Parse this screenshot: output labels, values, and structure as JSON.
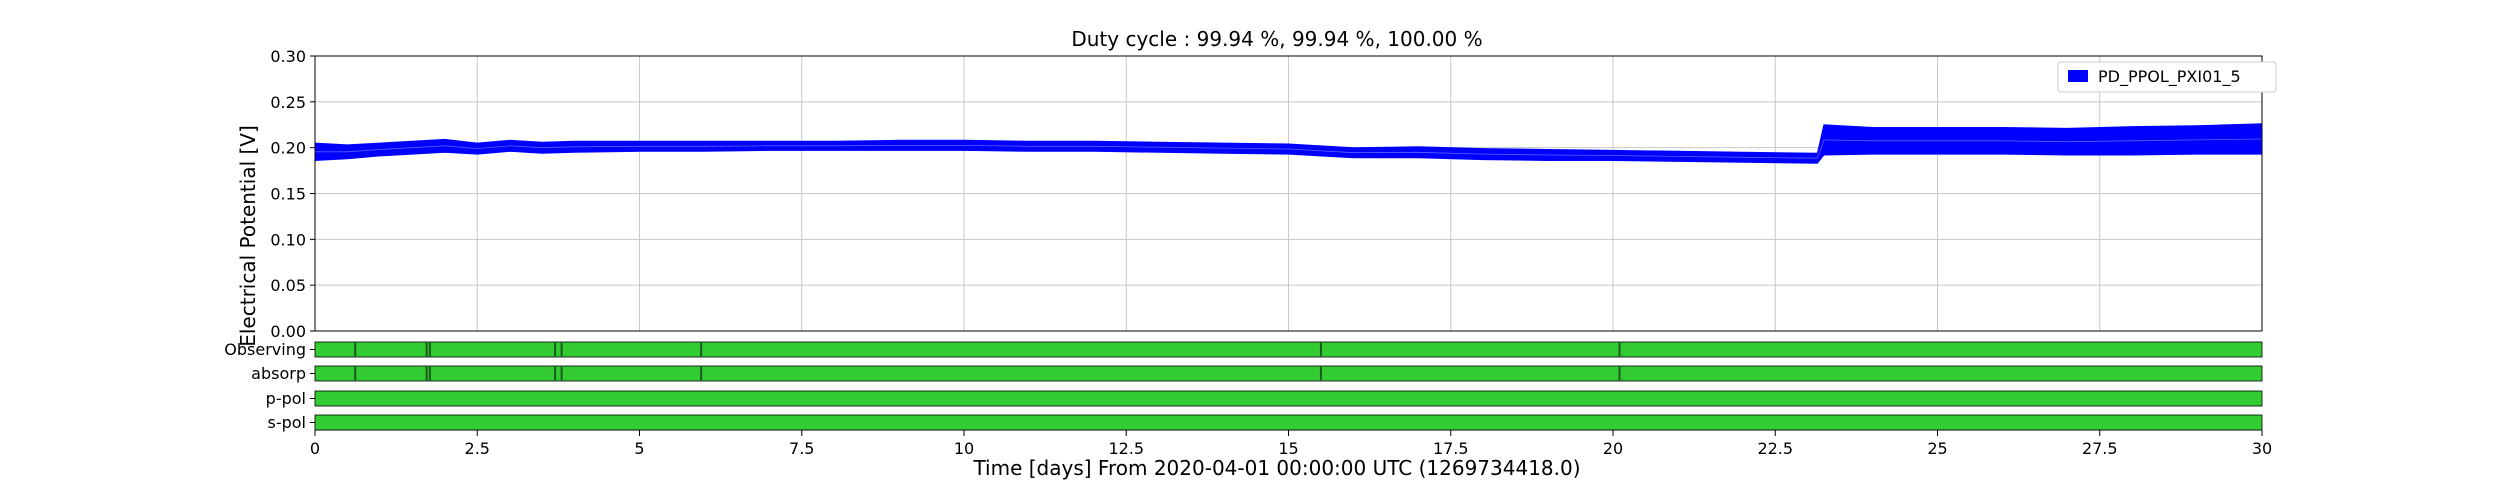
{
  "chart_data": {
    "type": "line",
    "title": "Duty cycle : 99.94 %, 99.94 %, 100.00 %",
    "xlabel": "Time [days] From 2020-04-01 00:00:00 UTC (1269734418.0)",
    "ylabel": "Electrical Potential [V]",
    "xlim": [
      0,
      30
    ],
    "ylim": [
      0,
      0.3
    ],
    "x_ticks": [
      0,
      2.5,
      5,
      7.5,
      10,
      12.5,
      15,
      17.5,
      20,
      22.5,
      25,
      27.5,
      30
    ],
    "x_tick_labels": [
      "0",
      "2.5",
      "5",
      "7.5",
      "10",
      "12.5",
      "15",
      "17.5",
      "20",
      "22.5",
      "25",
      "27.5",
      "30"
    ],
    "y_ticks": [
      0,
      0.05,
      0.1,
      0.15,
      0.2,
      0.25,
      0.3
    ],
    "y_tick_labels": [
      "0.00",
      "0.05",
      "0.10",
      "0.15",
      "0.20",
      "0.25",
      "0.30"
    ],
    "grid": true,
    "legend_position": "top-right",
    "series": [
      {
        "name": "PD_PPOL_PXI01_5",
        "color": "#0000ff",
        "x": [
          0,
          0.5,
          1,
          1.5,
          2,
          2.5,
          3,
          3.5,
          4,
          5,
          6,
          7,
          8,
          9,
          10,
          11,
          12,
          13,
          14,
          15,
          16,
          17,
          18,
          19,
          20,
          21,
          22,
          23.15,
          23.25,
          24,
          25,
          26,
          27,
          28,
          29,
          30
        ],
        "y_min": [
          0.186,
          0.188,
          0.191,
          0.193,
          0.195,
          0.193,
          0.196,
          0.194,
          0.195,
          0.196,
          0.196,
          0.197,
          0.197,
          0.197,
          0.197,
          0.196,
          0.196,
          0.195,
          0.194,
          0.193,
          0.189,
          0.189,
          0.187,
          0.186,
          0.186,
          0.185,
          0.184,
          0.183,
          0.192,
          0.193,
          0.193,
          0.193,
          0.192,
          0.192,
          0.193,
          0.193
        ],
        "y_max": [
          0.205,
          0.203,
          0.205,
          0.207,
          0.209,
          0.205,
          0.208,
          0.206,
          0.207,
          0.207,
          0.207,
          0.207,
          0.207,
          0.208,
          0.208,
          0.207,
          0.207,
          0.206,
          0.205,
          0.204,
          0.2,
          0.201,
          0.199,
          0.198,
          0.197,
          0.196,
          0.195,
          0.194,
          0.225,
          0.222,
          0.222,
          0.222,
          0.221,
          0.223,
          0.224,
          0.226
        ]
      }
    ],
    "segment_rows": [
      {
        "label": "Observing",
        "color": "#33cc33",
        "gaps": [
          0.62,
          1.72,
          1.77,
          3.7,
          3.8,
          5.95,
          15.5,
          20.1
        ]
      },
      {
        "label": "absorp",
        "color": "#33cc33",
        "gaps": [
          0.62,
          1.72,
          1.77,
          3.7,
          3.8,
          5.95,
          15.5,
          20.1
        ]
      },
      {
        "label": "p-pol",
        "color": "#33cc33",
        "gaps": []
      },
      {
        "label": "s-pol",
        "color": "#33cc33",
        "gaps": []
      }
    ]
  }
}
